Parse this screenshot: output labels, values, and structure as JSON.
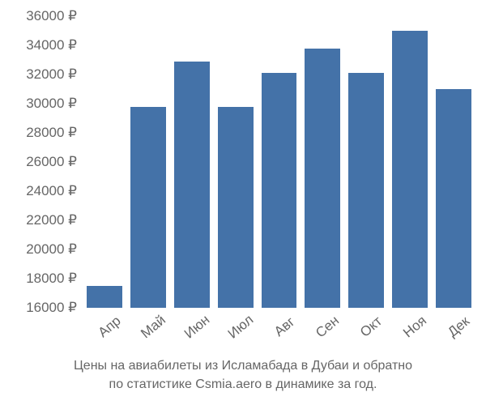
{
  "chart": {
    "type": "bar",
    "background_color": "#ffffff",
    "bar_color": "#4472a8",
    "text_color": "#666666",
    "bar_width_ratio": 0.8,
    "y_axis": {
      "min": 16000,
      "max": 36000,
      "tick_step": 2000,
      "unit": "₽",
      "fontsize": 17,
      "ticks": [
        {
          "value": 36000,
          "label": "36000 ₽"
        },
        {
          "value": 34000,
          "label": "34000 ₽"
        },
        {
          "value": 32000,
          "label": "32000 ₽"
        },
        {
          "value": 30000,
          "label": "30000 ₽"
        },
        {
          "value": 28000,
          "label": "28000 ₽"
        },
        {
          "value": 26000,
          "label": "26000 ₽"
        },
        {
          "value": 24000,
          "label": "24000 ₽"
        },
        {
          "value": 22000,
          "label": "22000 ₽"
        },
        {
          "value": 20000,
          "label": "20000 ₽"
        },
        {
          "value": 18000,
          "label": "18000 ₽"
        },
        {
          "value": 16000,
          "label": "16000 ₽"
        }
      ]
    },
    "x_axis": {
      "fontsize": 17,
      "rotation_deg": -40,
      "categories": [
        "Апр",
        "Май",
        "Июн",
        "Июл",
        "Авг",
        "Сен",
        "Окт",
        "Ноя",
        "Дек"
      ]
    },
    "values": [
      17500,
      29800,
      32900,
      29800,
      32100,
      33800,
      32100,
      35000,
      31000
    ]
  },
  "caption": {
    "line1": "Цены на авиабилеты из Исламабада в Дубаи и обратно",
    "line2": "по статистике Csmia.aero в динамике за год.",
    "fontsize": 16
  }
}
